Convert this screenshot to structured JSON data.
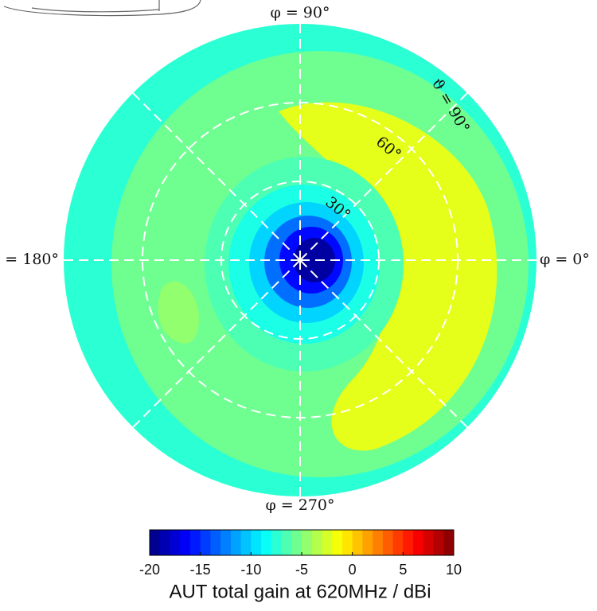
{
  "chart_data": {
    "type": "polar-contour",
    "colorbar_label": "AUT total gain at 620MHz / dBi",
    "colormap": "jet",
    "clim": [
      -20,
      10
    ],
    "cticks": [
      -20,
      -15,
      -10,
      -5,
      0,
      5,
      10
    ],
    "rlim": [
      0,
      90
    ],
    "rticks": [
      {
        "value": 30,
        "label": "30°"
      },
      {
        "value": 60,
        "label": "60°"
      },
      {
        "value": 90,
        "label": "ϑ = 90°"
      }
    ],
    "angle_ticks": [
      {
        "value": 0,
        "label": "φ = 0°"
      },
      {
        "value": 90,
        "label": "φ = 90°"
      },
      {
        "value": 180,
        "label": "= 180°"
      },
      {
        "value": 270,
        "label": "φ = 270°"
      }
    ],
    "contour_values": [
      -7.5,
      -5.5,
      -2,
      -4.5,
      -6.5,
      -8,
      -10,
      -13,
      -16,
      -19
    ]
  }
}
